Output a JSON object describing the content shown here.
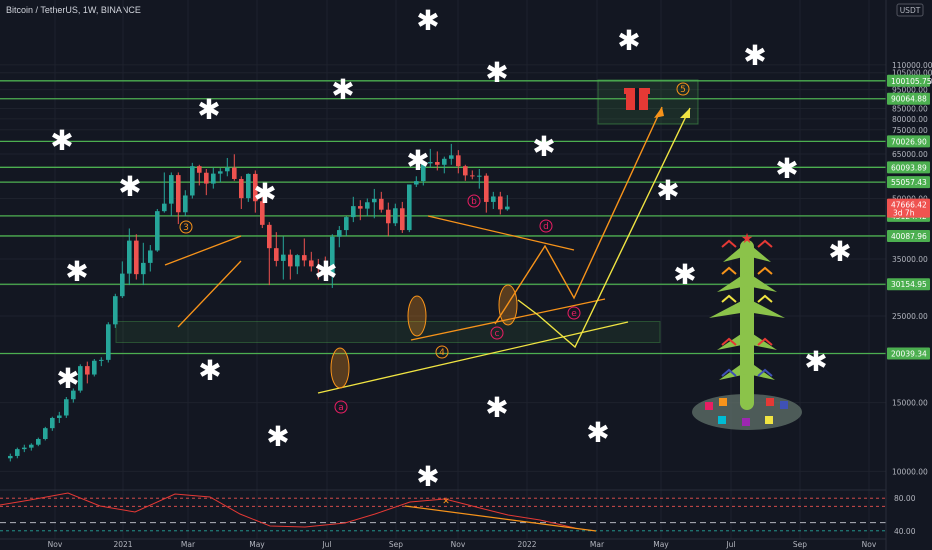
{
  "header": {
    "title": "Bitcoin / TetherUS, 1W, BINANCE",
    "currency": "USDT"
  },
  "colors": {
    "background": "#131722",
    "up": "#26a69a",
    "down": "#ef5350",
    "level_line": "#4caf50",
    "orange": "#f7931a",
    "yellow": "#f0e442",
    "wave_label": "#e91e63",
    "oscillator": "#e53935"
  },
  "chart_data": {
    "type": "candlestick",
    "yscale": "log",
    "ylim": [
      8800,
      145000
    ],
    "x_ticks": [
      "Nov",
      "2021",
      "Mar",
      "May",
      "Jul",
      "Sep",
      "Nov",
      "2022",
      "Mar",
      "May",
      "Jul",
      "Sep",
      "Nov"
    ],
    "y_ticks": [
      10000,
      15000,
      20000,
      25000,
      30000,
      35000,
      40000,
      45000,
      50000,
      55000,
      60000,
      65000,
      70000,
      75000,
      80000,
      85000,
      90000,
      95000,
      100000,
      105000,
      110000
    ],
    "y_tick_labels": [
      "10000.00",
      "15000.00",
      "20000.00",
      "25000.00",
      "30000.00",
      "35000.00",
      "40000.00",
      "45000.00",
      "50000.00",
      "55000.00",
      "60000.00",
      "65000.00",
      "70000.00",
      "75000.00",
      "80000.00",
      "85000.00",
      "90000.00",
      "95000.00",
      "100000.00",
      "105000.00",
      "110000.00"
    ],
    "levels": [
      {
        "value": 100105.75,
        "label": "100105.75"
      },
      {
        "value": 90064.88,
        "label": "90064.88"
      },
      {
        "value": 70026.9,
        "label": "70026.90"
      },
      {
        "value": 60093.89,
        "label": "60093.89"
      },
      {
        "value": 55057.43,
        "label": "55057.43"
      },
      {
        "value": 45124.42,
        "label": "45124.42"
      },
      {
        "value": 40087.96,
        "label": "40087.96"
      },
      {
        "value": 30154.95,
        "label": "30154.95"
      },
      {
        "value": 20039.34,
        "label": "20039.34"
      }
    ],
    "current_price": {
      "value": 47666.42,
      "label": "47666.42",
      "countdown": "3d 7h"
    },
    "candles": [
      [
        10800,
        11100,
        10600,
        10950
      ],
      [
        10950,
        11500,
        10800,
        11400
      ],
      [
        11400,
        11700,
        11200,
        11500
      ],
      [
        11500,
        11800,
        11300,
        11700
      ],
      [
        11700,
        12200,
        11600,
        12100
      ],
      [
        12100,
        13000,
        12000,
        12900
      ],
      [
        12900,
        13800,
        12700,
        13700
      ],
      [
        13700,
        14200,
        13300,
        13900
      ],
      [
        13900,
        15500,
        13700,
        15300
      ],
      [
        15300,
        16300,
        15000,
        16100
      ],
      [
        16100,
        18800,
        15900,
        18600
      ],
      [
        18600,
        19100,
        16800,
        17700
      ],
      [
        17700,
        19400,
        17500,
        19200
      ],
      [
        19200,
        19600,
        18600,
        19300
      ],
      [
        19300,
        24100,
        19000,
        23800
      ],
      [
        23800,
        28500,
        23300,
        28100
      ],
      [
        28100,
        34500,
        27800,
        32100
      ],
      [
        32100,
        41900,
        30000,
        39000
      ],
      [
        39000,
        40500,
        31000,
        32000
      ],
      [
        32000,
        38500,
        30000,
        34200
      ],
      [
        34200,
        38000,
        32500,
        36800
      ],
      [
        36800,
        47000,
        36500,
        46400
      ],
      [
        46400,
        58300,
        46000,
        48500
      ],
      [
        48500,
        58300,
        45000,
        57400
      ],
      [
        57400,
        58300,
        43000,
        46100
      ],
      [
        46100,
        52500,
        45000,
        50900
      ],
      [
        50900,
        61700,
        50000,
        60500
      ],
      [
        60500,
        61000,
        54000,
        58200
      ],
      [
        58200,
        59500,
        51000,
        54600
      ],
      [
        54600,
        60000,
        53000,
        57900
      ],
      [
        57900,
        59800,
        55000,
        58700
      ],
      [
        58700,
        63500,
        57000,
        60000
      ],
      [
        60000,
        64900,
        55500,
        56100
      ],
      [
        56100,
        57000,
        47000,
        50100
      ],
      [
        50100,
        58000,
        49000,
        57800
      ],
      [
        57800,
        59000,
        46000,
        49200
      ],
      [
        49200,
        50500,
        42000,
        42800
      ],
      [
        42800,
        43500,
        30000,
        37300
      ],
      [
        37300,
        41000,
        33500,
        34600
      ],
      [
        34600,
        40000,
        31000,
        35900
      ],
      [
        35900,
        37000,
        31000,
        33500
      ],
      [
        33500,
        36000,
        32000,
        35800
      ],
      [
        35800,
        39500,
        33500,
        34700
      ],
      [
        34700,
        36500,
        32500,
        33500
      ],
      [
        33500,
        35000,
        31000,
        33200
      ],
      [
        33200,
        35500,
        31500,
        31800
      ],
      [
        31800,
        40500,
        29500,
        39900
      ],
      [
        39900,
        42500,
        37500,
        41500
      ],
      [
        41500,
        45000,
        40000,
        44800
      ],
      [
        44800,
        50500,
        43500,
        47800
      ],
      [
        47800,
        49500,
        44000,
        47100
      ],
      [
        47100,
        50000,
        45000,
        48900
      ],
      [
        48900,
        52900,
        44500,
        49900
      ],
      [
        49900,
        52000,
        46000,
        46800
      ],
      [
        46800,
        48800,
        40000,
        43200
      ],
      [
        43200,
        48500,
        42500,
        47200
      ],
      [
        47200,
        49000,
        40800,
        41500
      ],
      [
        41500,
        54000,
        41000,
        54300
      ],
      [
        54300,
        57000,
        53500,
        55400
      ],
      [
        55400,
        62000,
        54000,
        61500
      ],
      [
        61500,
        67000,
        60000,
        62000
      ],
      [
        62000,
        66000,
        59000,
        61000
      ],
      [
        61000,
        64000,
        58000,
        63200
      ],
      [
        63200,
        69000,
        61000,
        64500
      ],
      [
        64500,
        66500,
        58000,
        60500
      ],
      [
        60500,
        61000,
        55500,
        57300
      ],
      [
        57300,
        59000,
        56000,
        57000
      ],
      [
        57000,
        59500,
        53000,
        57200
      ],
      [
        57200,
        58000,
        46000,
        49000
      ],
      [
        49000,
        52000,
        47000,
        50600
      ],
      [
        50600,
        52000,
        45500,
        46900
      ],
      [
        46900,
        51000,
        46500,
        47666
      ]
    ],
    "wave_labels": [
      {
        "text": "3",
        "color": "#f7931a"
      },
      {
        "text": "b",
        "color": "#e91e63"
      },
      {
        "text": "d",
        "color": "#e91e63"
      },
      {
        "text": "e",
        "color": "#e91e63"
      },
      {
        "text": "c",
        "color": "#e91e63"
      },
      {
        "text": "4",
        "color": "#f7931a"
      },
      {
        "text": "a",
        "color": "#e91e63"
      },
      {
        "text": "5",
        "color": "#f7931a"
      }
    ],
    "oscillator": {
      "ylim": [
        30,
        90
      ],
      "levels": [
        80,
        70,
        50,
        40
      ],
      "tick_labels": [
        "80.00",
        "40.00"
      ]
    }
  },
  "decorations": {
    "snowflake_glyph": "✱",
    "star_glyph": "★",
    "cross_glyph": "✕"
  }
}
